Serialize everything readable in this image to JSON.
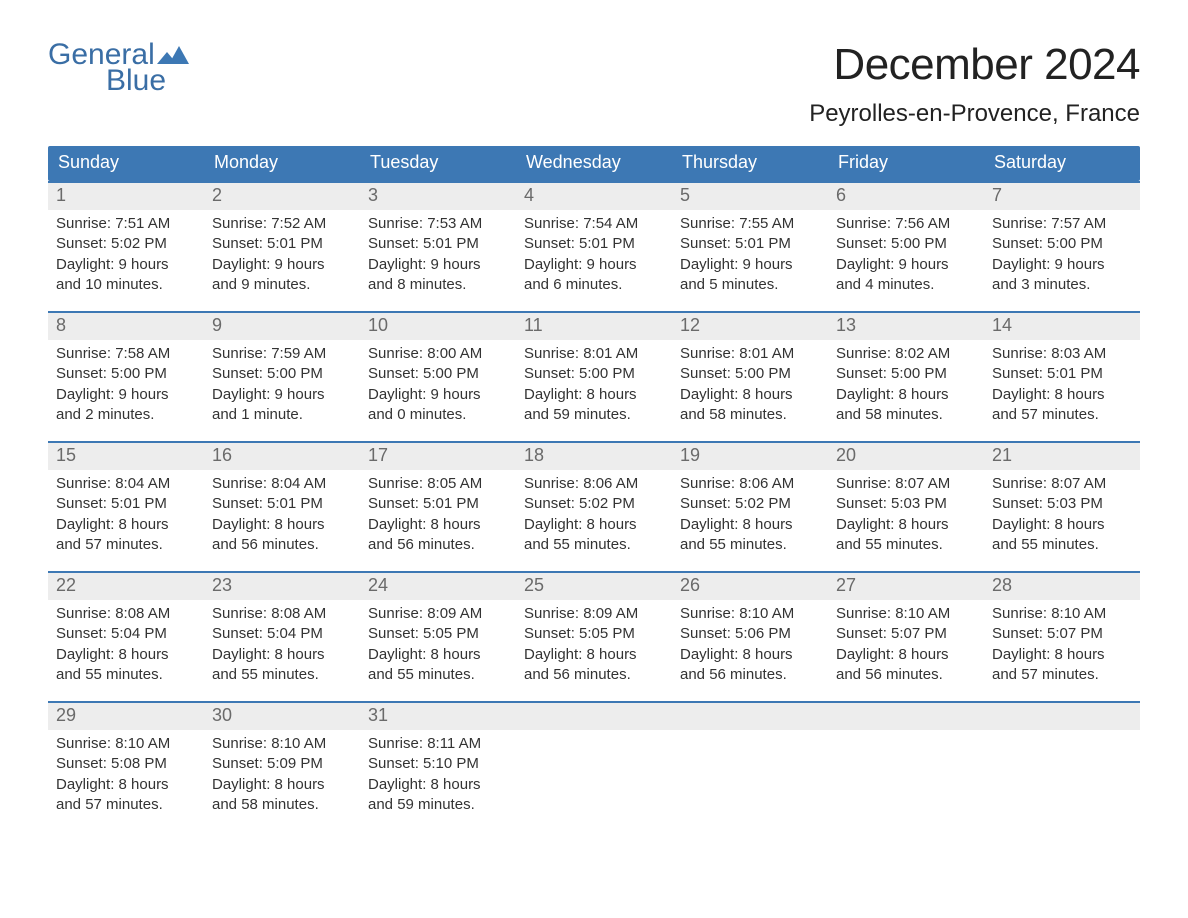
{
  "brand": {
    "top": "General",
    "bottom": "Blue"
  },
  "title": "December 2024",
  "location": "Peyrolles-en-Provence, France",
  "colors": {
    "header_bg": "#3d78b4",
    "header_text": "#ffffff",
    "daynum_bg": "#ededed",
    "daynum_text": "#6a6a6a",
    "body_text": "#333333",
    "rule": "#3d78b4",
    "logo": "#3a6ea5",
    "background": "#ffffff"
  },
  "weekdays": [
    "Sunday",
    "Monday",
    "Tuesday",
    "Wednesday",
    "Thursday",
    "Friday",
    "Saturday"
  ],
  "weeks": [
    [
      {
        "n": "1",
        "sunrise": "Sunrise: 7:51 AM",
        "sunset": "Sunset: 5:02 PM",
        "d1": "Daylight: 9 hours",
        "d2": "and 10 minutes."
      },
      {
        "n": "2",
        "sunrise": "Sunrise: 7:52 AM",
        "sunset": "Sunset: 5:01 PM",
        "d1": "Daylight: 9 hours",
        "d2": "and 9 minutes."
      },
      {
        "n": "3",
        "sunrise": "Sunrise: 7:53 AM",
        "sunset": "Sunset: 5:01 PM",
        "d1": "Daylight: 9 hours",
        "d2": "and 8 minutes."
      },
      {
        "n": "4",
        "sunrise": "Sunrise: 7:54 AM",
        "sunset": "Sunset: 5:01 PM",
        "d1": "Daylight: 9 hours",
        "d2": "and 6 minutes."
      },
      {
        "n": "5",
        "sunrise": "Sunrise: 7:55 AM",
        "sunset": "Sunset: 5:01 PM",
        "d1": "Daylight: 9 hours",
        "d2": "and 5 minutes."
      },
      {
        "n": "6",
        "sunrise": "Sunrise: 7:56 AM",
        "sunset": "Sunset: 5:00 PM",
        "d1": "Daylight: 9 hours",
        "d2": "and 4 minutes."
      },
      {
        "n": "7",
        "sunrise": "Sunrise: 7:57 AM",
        "sunset": "Sunset: 5:00 PM",
        "d1": "Daylight: 9 hours",
        "d2": "and 3 minutes."
      }
    ],
    [
      {
        "n": "8",
        "sunrise": "Sunrise: 7:58 AM",
        "sunset": "Sunset: 5:00 PM",
        "d1": "Daylight: 9 hours",
        "d2": "and 2 minutes."
      },
      {
        "n": "9",
        "sunrise": "Sunrise: 7:59 AM",
        "sunset": "Sunset: 5:00 PM",
        "d1": "Daylight: 9 hours",
        "d2": "and 1 minute."
      },
      {
        "n": "10",
        "sunrise": "Sunrise: 8:00 AM",
        "sunset": "Sunset: 5:00 PM",
        "d1": "Daylight: 9 hours",
        "d2": "and 0 minutes."
      },
      {
        "n": "11",
        "sunrise": "Sunrise: 8:01 AM",
        "sunset": "Sunset: 5:00 PM",
        "d1": "Daylight: 8 hours",
        "d2": "and 59 minutes."
      },
      {
        "n": "12",
        "sunrise": "Sunrise: 8:01 AM",
        "sunset": "Sunset: 5:00 PM",
        "d1": "Daylight: 8 hours",
        "d2": "and 58 minutes."
      },
      {
        "n": "13",
        "sunrise": "Sunrise: 8:02 AM",
        "sunset": "Sunset: 5:00 PM",
        "d1": "Daylight: 8 hours",
        "d2": "and 58 minutes."
      },
      {
        "n": "14",
        "sunrise": "Sunrise: 8:03 AM",
        "sunset": "Sunset: 5:01 PM",
        "d1": "Daylight: 8 hours",
        "d2": "and 57 minutes."
      }
    ],
    [
      {
        "n": "15",
        "sunrise": "Sunrise: 8:04 AM",
        "sunset": "Sunset: 5:01 PM",
        "d1": "Daylight: 8 hours",
        "d2": "and 57 minutes."
      },
      {
        "n": "16",
        "sunrise": "Sunrise: 8:04 AM",
        "sunset": "Sunset: 5:01 PM",
        "d1": "Daylight: 8 hours",
        "d2": "and 56 minutes."
      },
      {
        "n": "17",
        "sunrise": "Sunrise: 8:05 AM",
        "sunset": "Sunset: 5:01 PM",
        "d1": "Daylight: 8 hours",
        "d2": "and 56 minutes."
      },
      {
        "n": "18",
        "sunrise": "Sunrise: 8:06 AM",
        "sunset": "Sunset: 5:02 PM",
        "d1": "Daylight: 8 hours",
        "d2": "and 55 minutes."
      },
      {
        "n": "19",
        "sunrise": "Sunrise: 8:06 AM",
        "sunset": "Sunset: 5:02 PM",
        "d1": "Daylight: 8 hours",
        "d2": "and 55 minutes."
      },
      {
        "n": "20",
        "sunrise": "Sunrise: 8:07 AM",
        "sunset": "Sunset: 5:03 PM",
        "d1": "Daylight: 8 hours",
        "d2": "and 55 minutes."
      },
      {
        "n": "21",
        "sunrise": "Sunrise: 8:07 AM",
        "sunset": "Sunset: 5:03 PM",
        "d1": "Daylight: 8 hours",
        "d2": "and 55 minutes."
      }
    ],
    [
      {
        "n": "22",
        "sunrise": "Sunrise: 8:08 AM",
        "sunset": "Sunset: 5:04 PM",
        "d1": "Daylight: 8 hours",
        "d2": "and 55 minutes."
      },
      {
        "n": "23",
        "sunrise": "Sunrise: 8:08 AM",
        "sunset": "Sunset: 5:04 PM",
        "d1": "Daylight: 8 hours",
        "d2": "and 55 minutes."
      },
      {
        "n": "24",
        "sunrise": "Sunrise: 8:09 AM",
        "sunset": "Sunset: 5:05 PM",
        "d1": "Daylight: 8 hours",
        "d2": "and 55 minutes."
      },
      {
        "n": "25",
        "sunrise": "Sunrise: 8:09 AM",
        "sunset": "Sunset: 5:05 PM",
        "d1": "Daylight: 8 hours",
        "d2": "and 56 minutes."
      },
      {
        "n": "26",
        "sunrise": "Sunrise: 8:10 AM",
        "sunset": "Sunset: 5:06 PM",
        "d1": "Daylight: 8 hours",
        "d2": "and 56 minutes."
      },
      {
        "n": "27",
        "sunrise": "Sunrise: 8:10 AM",
        "sunset": "Sunset: 5:07 PM",
        "d1": "Daylight: 8 hours",
        "d2": "and 56 minutes."
      },
      {
        "n": "28",
        "sunrise": "Sunrise: 8:10 AM",
        "sunset": "Sunset: 5:07 PM",
        "d1": "Daylight: 8 hours",
        "d2": "and 57 minutes."
      }
    ],
    [
      {
        "n": "29",
        "sunrise": "Sunrise: 8:10 AM",
        "sunset": "Sunset: 5:08 PM",
        "d1": "Daylight: 8 hours",
        "d2": "and 57 minutes."
      },
      {
        "n": "30",
        "sunrise": "Sunrise: 8:10 AM",
        "sunset": "Sunset: 5:09 PM",
        "d1": "Daylight: 8 hours",
        "d2": "and 58 minutes."
      },
      {
        "n": "31",
        "sunrise": "Sunrise: 8:11 AM",
        "sunset": "Sunset: 5:10 PM",
        "d1": "Daylight: 8 hours",
        "d2": "and 59 minutes."
      },
      {
        "empty": true
      },
      {
        "empty": true
      },
      {
        "empty": true
      },
      {
        "empty": true
      }
    ]
  ]
}
